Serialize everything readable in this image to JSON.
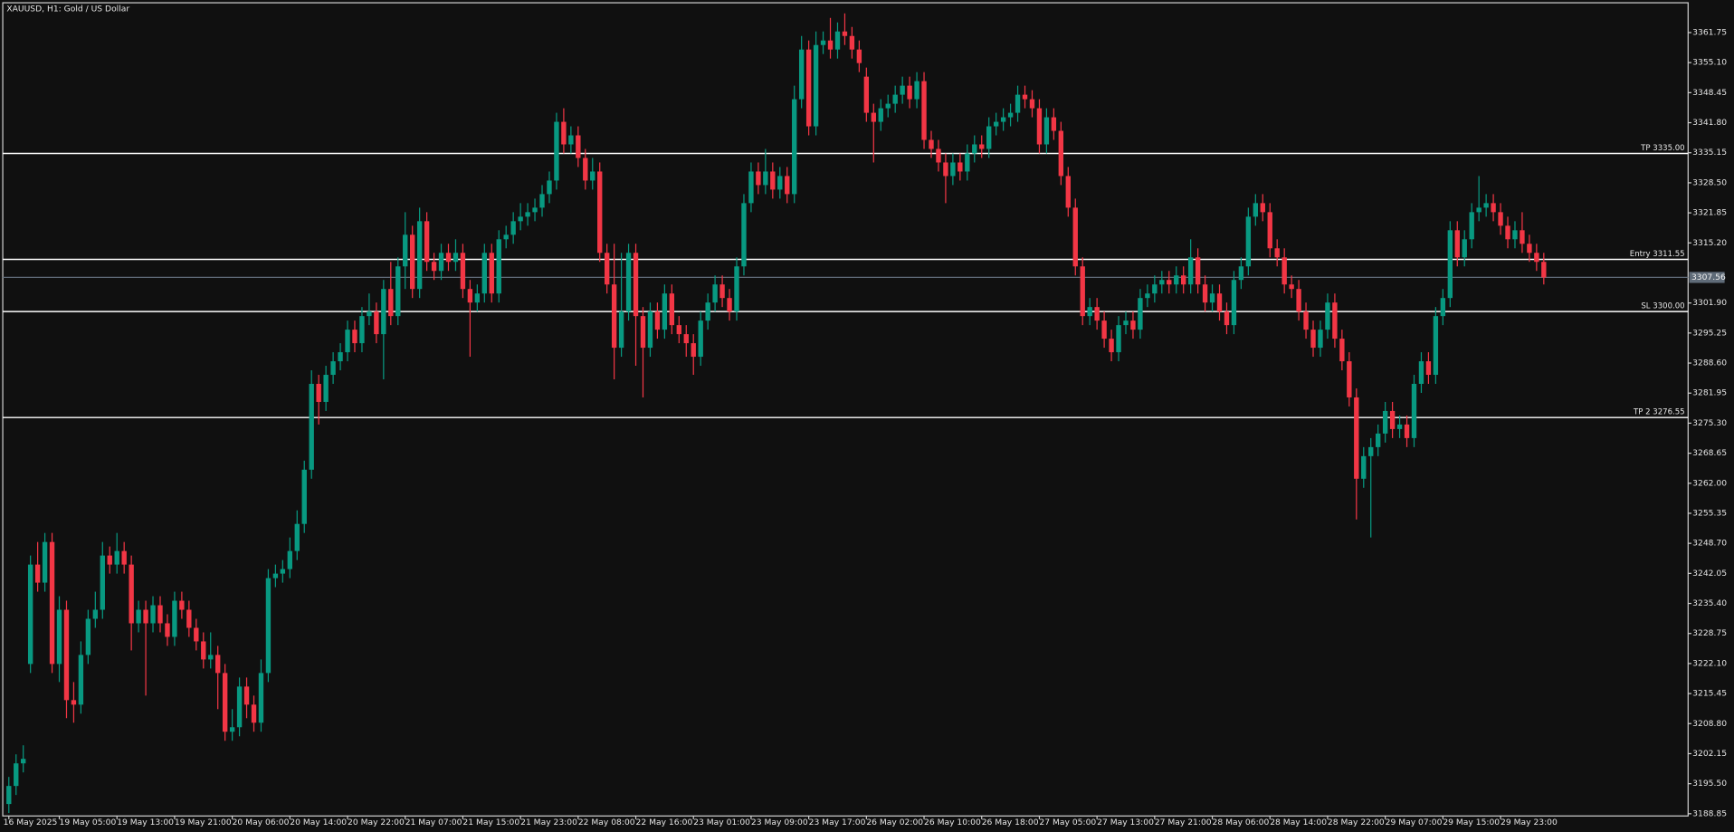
{
  "chart_data": {
    "type": "candlestick",
    "title": "XAUUSD, H1:  Gold / US Dollar",
    "up_color": "#089981",
    "down_color": "#f23645",
    "level_color": "#ffffff",
    "last_price_color": "#5f6b78",
    "grid": false,
    "ylim": [
      3188.36,
      3368.35
    ],
    "yticks": [
      3188.85,
      {
        "value": 3195.5,
        "label": "3195.50"
      },
      3202.15,
      {
        "value": 3208.8,
        "label": "3208.80"
      },
      3215.45,
      {
        "value": 3222.1,
        "label": "3222.10"
      },
      3228.75,
      {
        "value": 3235.4,
        "label": "3235.40"
      },
      3242.05,
      {
        "value": 3248.7,
        "label": "3248.70"
      },
      3255.35,
      {
        "value": 3262,
        "label": "3262.00"
      },
      3268.65,
      {
        "value": 3275.3,
        "label": "3275.30"
      },
      3281.95,
      {
        "value": 3288.6,
        "label": "3288.60"
      },
      3295.25,
      {
        "value": 3301.9,
        "label": "3301.90"
      },
      {
        "value": 3315.2,
        "label": "3315.20"
      },
      3321.85,
      {
        "value": 3328.5,
        "label": "3328.50"
      },
      3335.15,
      {
        "value": 3341.8,
        "label": "3341.80"
      },
      3348.45,
      {
        "value": 3355.1,
        "label": "3355.10"
      },
      3361.75
    ],
    "levels": [
      {
        "value": 3335,
        "label": "TP 3335.00"
      },
      {
        "value": 3311.55,
        "label": "Entry 3311.55"
      },
      {
        "value": 3300,
        "label": "SL 3300.00"
      },
      {
        "value": 3276.55,
        "label": "TP 2 3276.55"
      }
    ],
    "last_price": 3307.56,
    "categories": [
      "16 May 2025",
      null,
      null,
      null,
      null,
      null,
      null,
      "19 May 05:00",
      null,
      null,
      null,
      null,
      null,
      null,
      null,
      "19 May 13:00",
      null,
      null,
      null,
      null,
      null,
      null,
      null,
      "19 May 21:00",
      null,
      null,
      null,
      null,
      null,
      null,
      null,
      "20 May 06:00",
      null,
      null,
      null,
      null,
      null,
      null,
      null,
      "20 May 14:00",
      null,
      null,
      null,
      null,
      null,
      null,
      null,
      "20 May 22:00",
      null,
      null,
      null,
      null,
      null,
      null,
      null,
      "21 May 07:00",
      null,
      null,
      null,
      null,
      null,
      null,
      null,
      "21 May 15:00",
      null,
      null,
      null,
      null,
      null,
      null,
      null,
      "21 May 23:00",
      null,
      null,
      null,
      null,
      null,
      null,
      null,
      "22 May 08:00",
      null,
      null,
      null,
      null,
      null,
      null,
      null,
      "22 May 16:00",
      null,
      null,
      null,
      null,
      null,
      null,
      null,
      "23 May 01:00",
      null,
      null,
      null,
      null,
      null,
      null,
      null,
      "23 May 09:00",
      null,
      null,
      null,
      null,
      null,
      null,
      null,
      "23 May 17:00",
      null,
      null,
      null,
      null,
      null,
      null,
      null,
      "26 May 02:00",
      null,
      null,
      null,
      null,
      null,
      null,
      null,
      "26 May 10:00",
      null,
      null,
      null,
      null,
      null,
      null,
      null,
      "26 May 18:00",
      null,
      null,
      null,
      null,
      null,
      null,
      null,
      "27 May 05:00",
      null,
      null,
      null,
      null,
      null,
      null,
      null,
      "27 May 13:00",
      null,
      null,
      null,
      null,
      null,
      null,
      null,
      "27 May 21:00",
      null,
      null,
      null,
      null,
      null,
      null,
      null,
      "28 May 06:00",
      null,
      null,
      null,
      null,
      null,
      null,
      null,
      "28 May 14:00",
      null,
      null,
      null,
      null,
      null,
      null,
      null,
      "28 May 22:00",
      null,
      null,
      null,
      null,
      null,
      null,
      null,
      "29 May 07:00",
      null,
      null,
      null,
      null,
      null,
      null,
      null,
      "29 May 15:00",
      null,
      null,
      null,
      null,
      null,
      null,
      null,
      "29 May 23:00",
      null,
      null,
      null,
      null,
      null,
      null
    ],
    "open": [
      3191,
      3195,
      3200,
      3222,
      3244,
      3240,
      3249,
      3222,
      3234,
      3214,
      3213,
      3224,
      3232,
      3234,
      3246,
      3244,
      3247,
      3244,
      3231,
      3234,
      3231,
      3235,
      3231,
      3228,
      3236,
      3234,
      3230,
      3227,
      3223,
      3224,
      3220,
      3207,
      3208,
      3217,
      3213,
      3209,
      3220,
      3241,
      3242,
      3243,
      3247,
      3253,
      3265,
      3284,
      3280,
      3286,
      3289,
      3291,
      3296,
      3293,
      3299,
      3300,
      3295,
      3305,
      3299,
      3310,
      3317,
      3305,
      3320,
      3311,
      3309,
      3313,
      3311,
      3313,
      3305,
      3302,
      3304,
      3313,
      3304,
      3316,
      3317,
      3320,
      3321,
      3322,
      3323,
      3326,
      3329,
      3342,
      3337,
      3339,
      3334,
      3329,
      3331,
      3313,
      3306,
      3292,
      3300,
      3313,
      3299,
      3292,
      3300,
      3296,
      3304,
      3297,
      3295,
      3293,
      3290,
      3298,
      3302,
      3306,
      3303,
      3300,
      3310,
      3324,
      3331,
      3328,
      3331,
      3327,
      3330,
      3326,
      3347,
      3358,
      3341,
      3359,
      3360,
      3358,
      3362,
      3361,
      3358,
      3352,
      3344,
      3342,
      3345,
      3346,
      3348,
      3350,
      3347,
      3351,
      3338,
      3336,
      3333,
      3330,
      3333,
      3331,
      3335,
      3337,
      3336,
      3341,
      3342,
      3343,
      3344,
      3348,
      3347,
      3345,
      3337,
      3343,
      3340,
      3330,
      3323,
      3310,
      3299,
      3301,
      3298,
      3294,
      3291,
      3297,
      3298,
      3296,
      3303,
      3304,
      3306,
      3307,
      3306,
      3308,
      3306,
      3312,
      3306,
      3302,
      3304,
      3300,
      3297,
      3307,
      3310,
      3321,
      3324,
      3322,
      3314,
      3312,
      3306,
      3305,
      3300,
      3296,
      3292,
      3296,
      3302,
      3294,
      3289,
      3281,
      3263,
      3268,
      3270,
      3273,
      3278,
      3274,
      3275,
      3272,
      3284,
      3289,
      3286,
      3299,
      3303,
      3318,
      3312,
      3316,
      3322,
      3323,
      3324,
      3322,
      3319,
      3316,
      3318,
      3315,
      3313,
      3311
    ],
    "high": [
      3197,
      3202,
      3204,
      3246,
      3249,
      3251,
      3251,
      3237,
      3236,
      3218,
      3227,
      3234,
      3238,
      3249,
      3248,
      3251,
      3249,
      3246,
      3236,
      3236,
      3237,
      3237,
      3233,
      3238,
      3238,
      3236,
      3232,
      3229,
      3229,
      3226,
      3222,
      3212,
      3219,
      3219,
      3215,
      3223,
      3243,
      3244,
      3245,
      3250,
      3256,
      3267,
      3287,
      3286,
      3288,
      3291,
      3293,
      3298,
      3298,
      3301,
      3304,
      3302,
      3307,
      3311,
      3312,
      3322,
      3319,
      3323,
      3322,
      3313,
      3315,
      3315,
      3316,
      3315,
      3307,
      3306,
      3315,
      3315,
      3318,
      3319,
      3322,
      3324,
      3324,
      3325,
      3328,
      3331,
      3344,
      3345,
      3341,
      3341,
      3336,
      3334,
      3333,
      3315,
      3315,
      3313,
      3315,
      3315,
      3301,
      3302,
      3302,
      3306,
      3306,
      3299,
      3297,
      3295,
      3300,
      3304,
      3308,
      3308,
      3305,
      3312,
      3326,
      3333,
      3333,
      3336,
      3333,
      3332,
      3332,
      3350,
      3361,
      3360,
      3362,
      3362,
      3365,
      3364,
      3366,
      3363,
      3360,
      3354,
      3346,
      3347,
      3348,
      3350,
      3352,
      3352,
      3353,
      3353,
      3340,
      3338,
      3335,
      3335,
      3335,
      3337,
      3339,
      3339,
      3343,
      3344,
      3345,
      3346,
      3350,
      3350,
      3349,
      3347,
      3345,
      3345,
      3342,
      3332,
      3325,
      3312,
      3303,
      3303,
      3300,
      3296,
      3299,
      3300,
      3300,
      3305,
      3306,
      3308,
      3309,
      3309,
      3310,
      3310,
      3316,
      3314,
      3308,
      3306,
      3306,
      3302,
      3309,
      3312,
      3323,
      3326,
      3326,
      3324,
      3316,
      3314,
      3308,
      3307,
      3302,
      3298,
      3298,
      3304,
      3304,
      3296,
      3291,
      3283,
      3270,
      3272,
      3275,
      3280,
      3280,
      3277,
      3277,
      3286,
      3291,
      3291,
      3301,
      3305,
      3320,
      3320,
      3318,
      3324,
      3330,
      3326,
      3326,
      3324,
      3321,
      3320,
      3322,
      3317,
      3315,
      3313
    ],
    "low": [
      3189,
      3193,
      3198,
      3220,
      3238,
      3238,
      3220,
      3218,
      3210,
      3209,
      3211,
      3222,
      3230,
      3232,
      3242,
      3242,
      3242,
      3225,
      3229,
      3215,
      3229,
      3229,
      3226,
      3226,
      3232,
      3228,
      3225,
      3221,
      3221,
      3212,
      3205,
      3205,
      3206,
      3210,
      3207,
      3207,
      3218,
      3239,
      3240,
      3241,
      3245,
      3251,
      3263,
      3275,
      3278,
      3284,
      3287,
      3289,
      3291,
      3291,
      3297,
      3293,
      3285,
      3297,
      3297,
      3305,
      3303,
      3303,
      3309,
      3307,
      3307,
      3309,
      3309,
      3303,
      3290,
      3300,
      3302,
      3302,
      3302,
      3314,
      3315,
      3318,
      3319,
      3320,
      3321,
      3324,
      3327,
      3335,
      3335,
      3332,
      3327,
      3327,
      3311,
      3304,
      3285,
      3290,
      3298,
      3288,
      3281,
      3290,
      3294,
      3294,
      3295,
      3293,
      3290,
      3286,
      3288,
      3296,
      3300,
      3301,
      3298,
      3298,
      3308,
      3322,
      3326,
      3326,
      3325,
      3325,
      3324,
      3324,
      3345,
      3339,
      3339,
      3357,
      3356,
      3356,
      3359,
      3356,
      3353,
      3342,
      3333,
      3340,
      3343,
      3344,
      3346,
      3345,
      3345,
      3336,
      3334,
      3331,
      3324,
      3328,
      3329,
      3329,
      3333,
      3334,
      3334,
      3339,
      3340,
      3341,
      3342,
      3345,
      3343,
      3335,
      3335,
      3338,
      3328,
      3321,
      3308,
      3297,
      3297,
      3296,
      3292,
      3289,
      3289,
      3295,
      3294,
      3294,
      3301,
      3302,
      3304,
      3304,
      3304,
      3304,
      3304,
      3304,
      3300,
      3300,
      3298,
      3295,
      3295,
      3305,
      3308,
      3319,
      3320,
      3312,
      3310,
      3304,
      3303,
      3298,
      3294,
      3290,
      3290,
      3294,
      3292,
      3287,
      3279,
      3254,
      3261,
      3250,
      3268,
      3271,
      3272,
      3272,
      3270,
      3270,
      3282,
      3284,
      3284,
      3297,
      3301,
      3310,
      3310,
      3314,
      3320,
      3321,
      3320,
      3317,
      3314,
      3314,
      3313,
      3311,
      3309,
      3306
    ],
    "close": [
      3195,
      3200,
      3201,
      3244,
      3240,
      3249,
      3222,
      3234,
      3214,
      3213,
      3224,
      3232,
      3234,
      3246,
      3244,
      3247,
      3244,
      3231,
      3234,
      3231,
      3235,
      3231,
      3228,
      3236,
      3234,
      3230,
      3227,
      3223,
      3224,
      3220,
      3207,
      3208,
      3217,
      3213,
      3209,
      3220,
      3241,
      3242,
      3243,
      3247,
      3253,
      3265,
      3284,
      3280,
      3286,
      3289,
      3291,
      3296,
      3293,
      3299,
      3300,
      3295,
      3305,
      3299,
      3310,
      3317,
      3305,
      3320,
      3311,
      3309,
      3313,
      3311,
      3313,
      3305,
      3302,
      3304,
      3313,
      3304,
      3316,
      3317,
      3320,
      3321,
      3322,
      3323,
      3326,
      3329,
      3342,
      3337,
      3339,
      3334,
      3329,
      3331,
      3313,
      3306,
      3292,
      3300,
      3313,
      3299,
      3292,
      3300,
      3296,
      3304,
      3297,
      3295,
      3293,
      3290,
      3298,
      3302,
      3306,
      3303,
      3300,
      3310,
      3324,
      3331,
      3328,
      3331,
      3327,
      3330,
      3326,
      3347,
      3358,
      3341,
      3359,
      3360,
      3358,
      3362,
      3361,
      3358,
      3355,
      3344,
      3342,
      3345,
      3346,
      3348,
      3350,
      3347,
      3351,
      3338,
      3336,
      3333,
      3330,
      3333,
      3331,
      3335,
      3337,
      3336,
      3341,
      3342,
      3343,
      3344,
      3348,
      3347,
      3345,
      3337,
      3343,
      3340,
      3330,
      3323,
      3310,
      3299,
      3301,
      3298,
      3294,
      3291,
      3297,
      3298,
      3296,
      3303,
      3304,
      3306,
      3307,
      3306,
      3308,
      3306,
      3312,
      3306,
      3302,
      3304,
      3300,
      3297,
      3307,
      3310,
      3321,
      3324,
      3322,
      3314,
      3312,
      3306,
      3305,
      3300,
      3296,
      3292,
      3296,
      3302,
      3294,
      3289,
      3281,
      3263,
      3268,
      3270,
      3273,
      3278,
      3274,
      3275,
      3272,
      3284,
      3289,
      3286,
      3299,
      3303,
      3318,
      3312,
      3316,
      3322,
      3323,
      3324,
      3322,
      3319,
      3316,
      3318,
      3315,
      3313,
      3311,
      3307.56
    ]
  }
}
